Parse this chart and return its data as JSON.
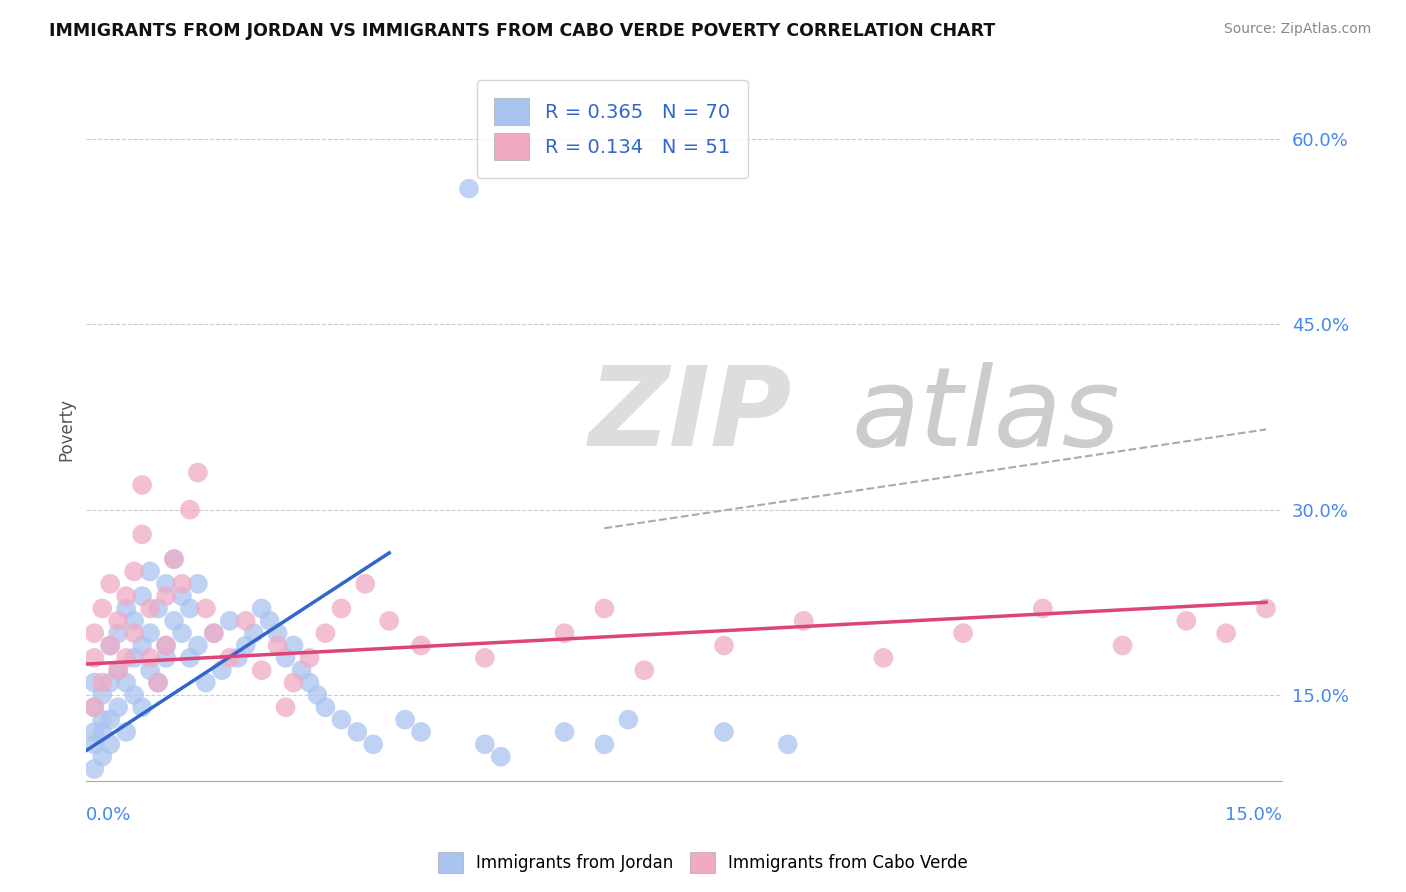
{
  "title": "IMMIGRANTS FROM JORDAN VS IMMIGRANTS FROM CABO VERDE POVERTY CORRELATION CHART",
  "source": "Source: ZipAtlas.com",
  "ylabel": "Poverty",
  "y_ticks": [
    0.15,
    0.3,
    0.45,
    0.6
  ],
  "y_tick_labels": [
    "15.0%",
    "30.0%",
    "45.0%",
    "60.0%"
  ],
  "xlim": [
    0.0,
    0.15
  ],
  "ylim": [
    0.08,
    0.65
  ],
  "jordan_R": 0.365,
  "jordan_N": 70,
  "caboverde_R": 0.134,
  "caboverde_N": 51,
  "jordan_color": "#aac4f0",
  "caboverde_color": "#f0aac4",
  "jordan_line_color": "#3366cc",
  "caboverde_line_color": "#dd4477",
  "background_color": "#ffffff",
  "jordan_line_x": [
    0.0,
    0.038
  ],
  "jordan_line_y": [
    0.105,
    0.265
  ],
  "caboverde_line_x": [
    0.0,
    0.148
  ],
  "caboverde_line_y": [
    0.175,
    0.225
  ],
  "dashed_line_x": [
    0.065,
    0.148
  ],
  "dashed_line_y": [
    0.285,
    0.365
  ],
  "jordan_pts_x": [
    0.001,
    0.001,
    0.001,
    0.001,
    0.001,
    0.002,
    0.002,
    0.002,
    0.002,
    0.003,
    0.003,
    0.003,
    0.003,
    0.004,
    0.004,
    0.004,
    0.005,
    0.005,
    0.005,
    0.006,
    0.006,
    0.006,
    0.007,
    0.007,
    0.007,
    0.008,
    0.008,
    0.008,
    0.009,
    0.009,
    0.01,
    0.01,
    0.01,
    0.011,
    0.011,
    0.012,
    0.012,
    0.013,
    0.013,
    0.014,
    0.014,
    0.015,
    0.016,
    0.017,
    0.018,
    0.019,
    0.02,
    0.021,
    0.022,
    0.023,
    0.024,
    0.025,
    0.026,
    0.027,
    0.028,
    0.029,
    0.03,
    0.032,
    0.034,
    0.036,
    0.04,
    0.042,
    0.05,
    0.052,
    0.06,
    0.065,
    0.068,
    0.08,
    0.088,
    0.048
  ],
  "jordan_pts_y": [
    0.14,
    0.16,
    0.11,
    0.12,
    0.09,
    0.13,
    0.15,
    0.1,
    0.12,
    0.16,
    0.19,
    0.13,
    0.11,
    0.17,
    0.14,
    0.2,
    0.22,
    0.16,
    0.12,
    0.18,
    0.15,
    0.21,
    0.19,
    0.23,
    0.14,
    0.2,
    0.17,
    0.25,
    0.16,
    0.22,
    0.18,
    0.24,
    0.19,
    0.21,
    0.26,
    0.2,
    0.23,
    0.22,
    0.18,
    0.24,
    0.19,
    0.16,
    0.2,
    0.17,
    0.21,
    0.18,
    0.19,
    0.2,
    0.22,
    0.21,
    0.2,
    0.18,
    0.19,
    0.17,
    0.16,
    0.15,
    0.14,
    0.13,
    0.12,
    0.11,
    0.13,
    0.12,
    0.11,
    0.1,
    0.12,
    0.11,
    0.13,
    0.12,
    0.11,
    0.56
  ],
  "cabo_pts_x": [
    0.001,
    0.001,
    0.001,
    0.002,
    0.002,
    0.003,
    0.003,
    0.004,
    0.004,
    0.005,
    0.005,
    0.006,
    0.006,
    0.007,
    0.007,
    0.008,
    0.008,
    0.009,
    0.01,
    0.01,
    0.011,
    0.012,
    0.013,
    0.014,
    0.015,
    0.016,
    0.018,
    0.02,
    0.022,
    0.024,
    0.026,
    0.028,
    0.03,
    0.032,
    0.035,
    0.038,
    0.042,
    0.05,
    0.06,
    0.065,
    0.07,
    0.08,
    0.09,
    0.1,
    0.11,
    0.12,
    0.13,
    0.138,
    0.143,
    0.148,
    0.025
  ],
  "cabo_pts_y": [
    0.18,
    0.14,
    0.2,
    0.22,
    0.16,
    0.19,
    0.24,
    0.21,
    0.17,
    0.23,
    0.18,
    0.25,
    0.2,
    0.28,
    0.32,
    0.22,
    0.18,
    0.16,
    0.19,
    0.23,
    0.26,
    0.24,
    0.3,
    0.33,
    0.22,
    0.2,
    0.18,
    0.21,
    0.17,
    0.19,
    0.16,
    0.18,
    0.2,
    0.22,
    0.24,
    0.21,
    0.19,
    0.18,
    0.2,
    0.22,
    0.17,
    0.19,
    0.21,
    0.18,
    0.2,
    0.22,
    0.19,
    0.21,
    0.2,
    0.22,
    0.14
  ]
}
